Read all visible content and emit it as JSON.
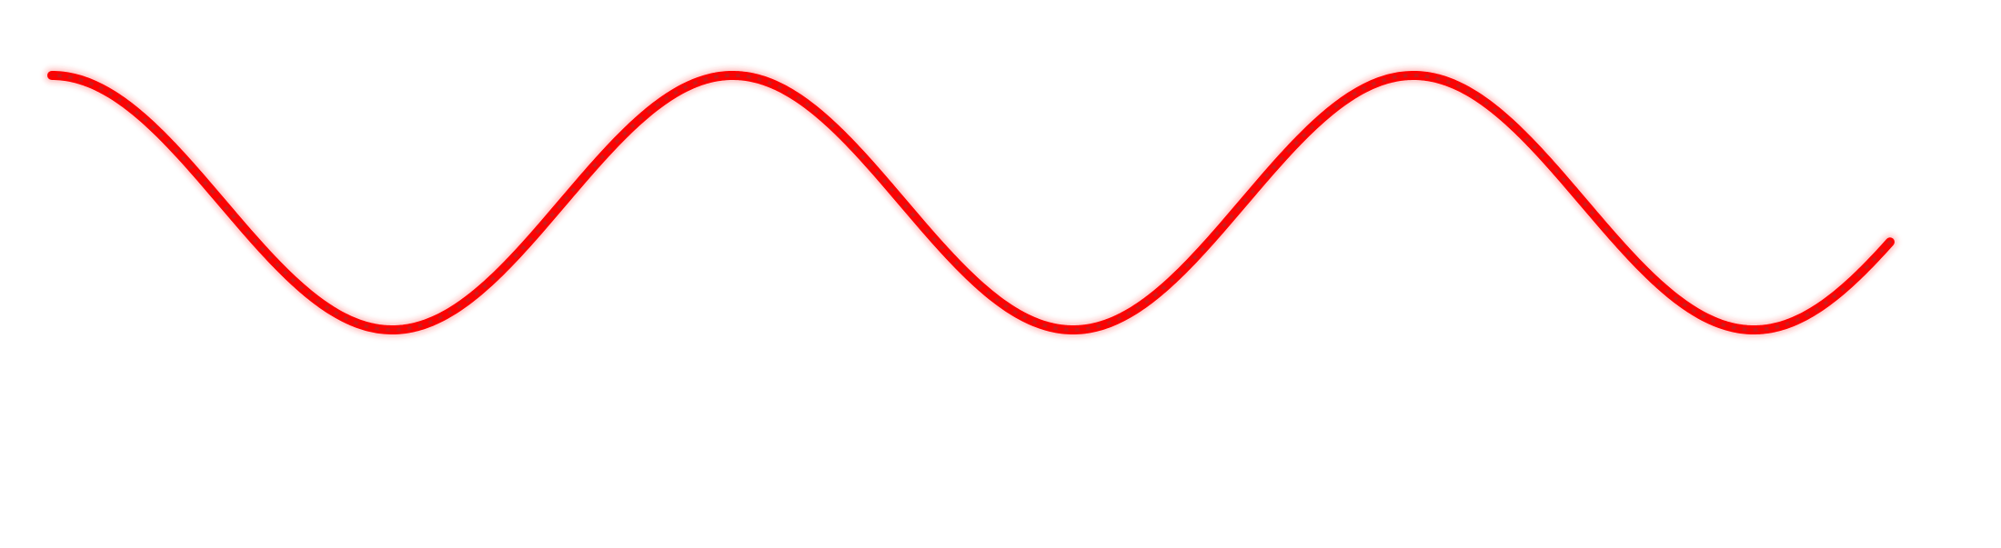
{
  "curve": {
    "shape": "sine-wave",
    "cycles": 2.7,
    "start_phase": "crest",
    "stroke_color": "#ff0000",
    "core_color": "#c81e1e",
    "halo_color": "#ff2b2b",
    "background": "#ffffff"
  }
}
